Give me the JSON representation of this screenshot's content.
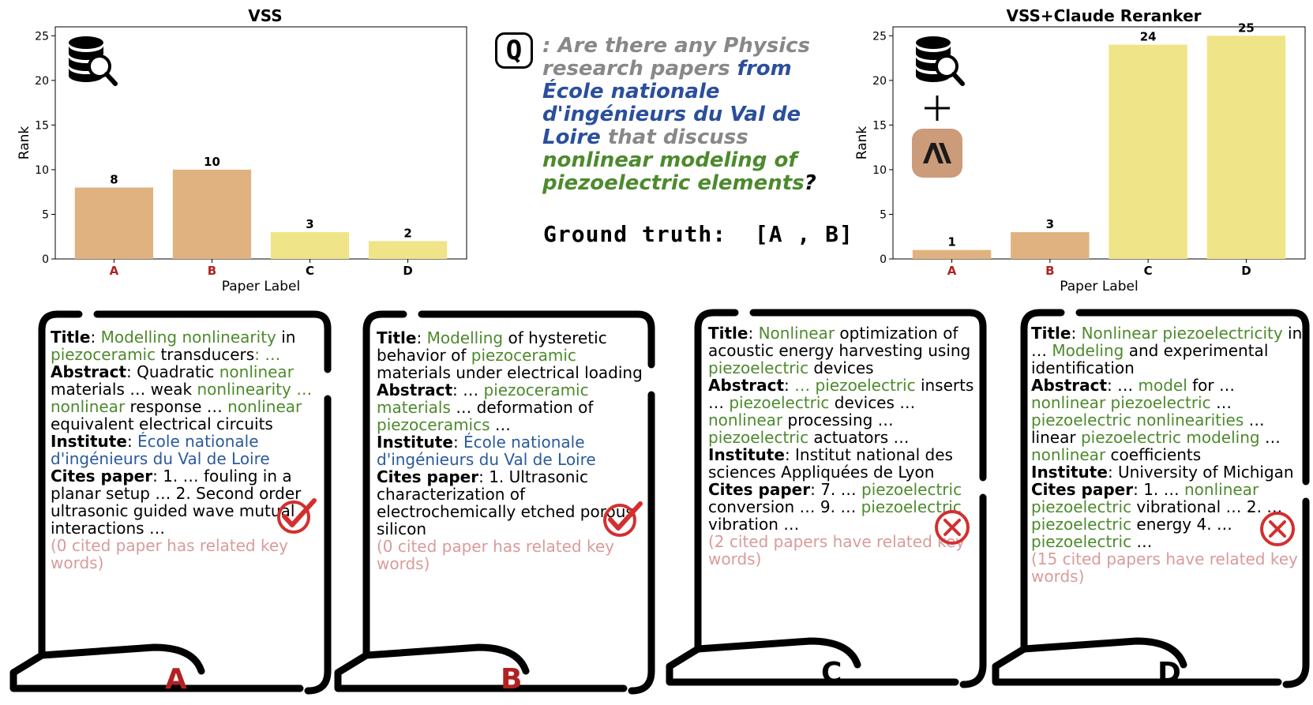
{
  "charts": [
    {
      "type": "bar",
      "title": "VSS",
      "categories": [
        "A",
        "B",
        "C",
        "D"
      ],
      "values": [
        8,
        10,
        3,
        2
      ],
      "xlabel": "Paper Label",
      "ylabel": "Rank",
      "ylim": [
        0,
        26
      ],
      "yticks": [
        0,
        5,
        10,
        15,
        20,
        25
      ],
      "bar_colors": [
        "#dfb27f",
        "#dfb27f",
        "#efe487",
        "#efe487"
      ],
      "tick_colors": [
        "#b22222",
        "#b22222",
        "#000000",
        "#000000"
      ]
    },
    {
      "type": "bar",
      "title": "VSS+Claude Reranker",
      "categories": [
        "A",
        "B",
        "C",
        "D"
      ],
      "values": [
        1,
        3,
        24,
        25
      ],
      "xlabel": "Paper Label",
      "ylabel": "Rank",
      "ylim": [
        0,
        26
      ],
      "yticks": [
        0,
        5,
        10,
        15,
        20,
        25
      ],
      "bar_colors": [
        "#dfb27f",
        "#dfb27f",
        "#efe487",
        "#efe487"
      ],
      "tick_colors": [
        "#b22222",
        "#b22222",
        "#000000",
        "#000000"
      ]
    }
  ],
  "chart_data": [
    {
      "type": "bar",
      "title": "VSS",
      "categories": [
        "A",
        "B",
        "C",
        "D"
      ],
      "values": [
        8,
        10,
        3,
        2
      ],
      "xlabel": "Paper Label",
      "ylabel": "Rank",
      "ylim": [
        0,
        26
      ]
    },
    {
      "type": "bar",
      "title": "VSS+Claude Reranker",
      "categories": [
        "A",
        "B",
        "C",
        "D"
      ],
      "values": [
        1,
        3,
        24,
        25
      ],
      "xlabel": "Paper Label",
      "ylabel": "Rank",
      "ylim": [
        0,
        26
      ]
    }
  ],
  "question": {
    "icon_letter": "Q",
    "part1": ": Are there any Physics research papers ",
    "part2": "from École nationale d'ingénieurs du Val de Loire",
    "part3": " that discuss ",
    "part4": "nonlinear modeling of piezoelectric elements",
    "part5": "?"
  },
  "ground_truth": "Ground truth:  [A , B]",
  "icons": {
    "database": "database-search-icon",
    "plus": "plus-icon",
    "anthropic": "anthropic-logo-icon",
    "check": "check-icon",
    "cross": "cross-icon"
  },
  "colors": {
    "highlight_green": "#4d8a2d",
    "highlight_blue": "#2a4f9c",
    "correct_red": "#b22222",
    "note_pink": "#d99b9b"
  },
  "cards": [
    {
      "label": "A",
      "label_color": "#b22222",
      "mark": "check",
      "title_key": "Title",
      "title_parts": [
        ": ",
        "Modelling nonlinearity",
        " in ",
        "piezoceramic",
        " transducers",
        ": …"
      ],
      "abstract_key": "Abstract",
      "abstract_parts": [
        ": Quadratic ",
        "nonlinear",
        " materials … weak ",
        "nonlinearity …",
        " ",
        "nonlinear",
        " response … ",
        "nonlinear",
        " equivalent electrical circuits"
      ],
      "institute_key": "Institute",
      "institute": "École nationale d'ingénieurs du Val de Loire",
      "cites_key": "Cites paper",
      "cites": ": 1. … fouling in a planar setup … 2. Second order ultrasonic guided wave mutual interactions …",
      "note": "(0 cited paper has related key words)"
    },
    {
      "label": "B",
      "label_color": "#b22222",
      "mark": "check",
      "title_key": "Title",
      "title_parts": [
        ": ",
        "Modelling",
        " of hysteretic behavior of ",
        "piezoceramic",
        " materials under electrical loading"
      ],
      "abstract_key": "Abstract",
      "abstract_parts": [
        ": … ",
        "piezoceramic materials",
        " … deformation of ",
        "piezoceramics",
        " …"
      ],
      "institute_key": "Institute",
      "institute": "École nationale d'ingénieurs du Val de Loire",
      "cites_key": "Cites paper",
      "cites": ": 1. Ultrasonic characterization of electrochemically etched porous silicon",
      "note": "(0 cited paper has related key words)"
    },
    {
      "label": "C",
      "label_color": "#000000",
      "mark": "cross",
      "title_key": "Title",
      "title_parts": [
        ": ",
        "Nonlinear",
        " optimization of acoustic energy harvesting using ",
        "piezoelectric",
        " devices"
      ],
      "abstract_key": "Abstract",
      "abstract_parts": [
        ": ",
        "… piezoelectric",
        " inserts … ",
        "piezoelectric",
        " devices … ",
        "nonlinear",
        " processing … ",
        "piezoelectric",
        " actuators …"
      ],
      "institute_key": "Institute",
      "institute": ": Institut national des sciences Appliquées de Lyon",
      "cites_key": "Cites paper",
      "cites_parts": [
        ": 7. … ",
        "piezoelectric",
        " conversion … 9. … ",
        "piezoelectric",
        " vibration …"
      ],
      "note": "(2 cited papers have related key words)"
    },
    {
      "label": "D",
      "label_color": "#000000",
      "mark": "cross",
      "title_key": "Title",
      "title_parts": [
        ": ",
        "Nonlinear piezoelectricity",
        " in … ",
        "Modeling",
        " and experimental identification"
      ],
      "abstract_key": "Abstract",
      "abstract_parts": [
        ": … ",
        "model",
        " for … ",
        "nonlinear piezoelectric",
        " … ",
        "piezoelectric nonlinearities",
        " … linear ",
        "piezoelectric modeling",
        " … ",
        "nonlinear",
        " coefficients"
      ],
      "institute_key": "Institute",
      "institute": ": University of Michigan",
      "cites_key": "Cites paper",
      "cites_parts": [
        ": 1. … ",
        "nonlinear piezoelectric",
        " vibrational … 2. … ",
        "piezoelectric",
        " energy 4. … ",
        "piezoelectric",
        " …"
      ],
      "note": "(15 cited papers have related key words)"
    }
  ]
}
